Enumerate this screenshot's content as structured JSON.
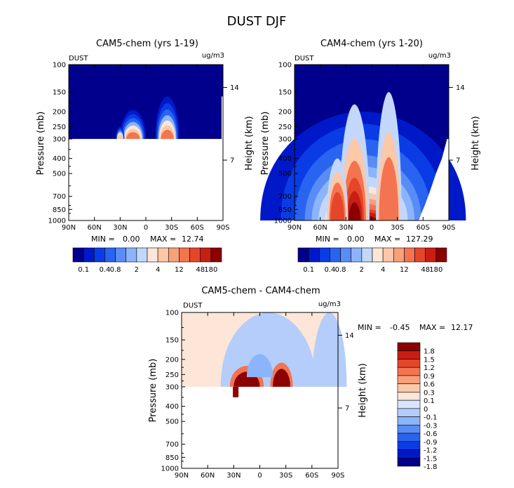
{
  "figure": {
    "title": "DUST DJF"
  },
  "chart_data": [
    {
      "type": "heatmap",
      "title": "CAM5-chem (yrs 1-19)",
      "left_label": "DUST",
      "units": "ug/m3",
      "ylabel": "Pressure (mb)",
      "right_label": "Height (km)",
      "x_ticks": [
        "90N",
        "60N",
        "30N",
        "0",
        "30S",
        "60S",
        "90S"
      ],
      "y_ticks": [
        "100",
        "150",
        "200",
        "250",
        "300",
        "400",
        "500",
        "700",
        "850",
        "1000"
      ],
      "right_ticks": [
        "14",
        "7"
      ],
      "stats": {
        "min_label": "MIN =",
        "min": "0.00",
        "max_label": "MAX =",
        "max": "12.74"
      },
      "levels": [
        "0.1",
        "0.4",
        "0.8",
        "2",
        "4",
        "12",
        "48",
        "180"
      ],
      "plumes": [
        {
          "lat": 15,
          "p_top": 195,
          "p_bottom": 300,
          "width": 30,
          "peak_level": 5
        },
        {
          "lat": -25,
          "p_top": 160,
          "p_bottom": 300,
          "width": 28,
          "peak_level": 5
        },
        {
          "lat": 30,
          "p_top": 250,
          "p_bottom": 300,
          "width": 10,
          "peak_level": 3
        }
      ]
    },
    {
      "type": "heatmap",
      "title": "CAM4-chem (yrs 1-20)",
      "left_label": "DUST",
      "units": "ug/m3",
      "ylabel": "Pressure (mb)",
      "right_label": "Height (km)",
      "x_ticks": [
        "90N",
        "60N",
        "30N",
        "0",
        "30S",
        "60S",
        "90S"
      ],
      "y_ticks": [
        "100",
        "150",
        "200",
        "250",
        "300",
        "400",
        "500",
        "700",
        "850",
        "1000"
      ],
      "right_ticks": [
        "14",
        "7"
      ],
      "stats": {
        "min_label": "MIN =",
        "min": "0.00",
        "max_label": "MAX =",
        "max": "127.29"
      },
      "levels": [
        "0.1",
        "0.4",
        "0.8",
        "2",
        "4",
        "12",
        "48",
        "180"
      ],
      "plumes": [
        {
          "lat": 20,
          "p_top": 180,
          "p_bottom": 1000,
          "width": 35,
          "peak_level": 14
        },
        {
          "lat": -20,
          "p_top": 150,
          "p_bottom": 1000,
          "width": 30,
          "peak_level": 10
        },
        {
          "lat": 40,
          "p_top": 400,
          "p_bottom": 1000,
          "width": 25,
          "peak_level": 11
        }
      ]
    },
    {
      "type": "heatmap",
      "title": "CAM5-chem - CAM4-chem",
      "left_label": "DUST",
      "units": "ug/m3",
      "ylabel": "Pressure (mb)",
      "right_label": "Height (km)",
      "x_ticks": [
        "90N",
        "60N",
        "30N",
        "0",
        "30S",
        "60S",
        "90S"
      ],
      "y_ticks": [
        "100",
        "150",
        "200",
        "250",
        "300",
        "400",
        "500",
        "700",
        "850",
        "1000"
      ],
      "right_ticks": [
        "14",
        "7"
      ],
      "stats": {
        "min_label": "MIN =",
        "min": "-0.45",
        "max_label": "MAX =",
        "max": "12.17"
      },
      "levels": [
        "1.8",
        "1.5",
        "1.2",
        "0.9",
        "0.6",
        "0.3",
        "0.1",
        "0",
        "-0.1",
        "-0.3",
        "-0.6",
        "-0.9",
        "-1.2",
        "-1.5",
        "-1.8"
      ],
      "plumes": [
        {
          "lat": 15,
          "p_top": 240,
          "p_bottom": 300,
          "width": 30,
          "value": 1.8
        },
        {
          "lat": -25,
          "p_top": 230,
          "p_bottom": 300,
          "width": 20,
          "value": 1.8
        },
        {
          "lat": 0,
          "p_top": 185,
          "p_bottom": 260,
          "width": 30,
          "value": -0.1
        }
      ]
    }
  ],
  "colors": {
    "upper_ramp": [
      "#00008c",
      "#0019c8",
      "#0a3ce6",
      "#2864f0",
      "#5a8cf5",
      "#8cb4fa",
      "#c3d7fc",
      "#fde6d7",
      "#fbc8a8",
      "#f8a07a",
      "#f47350",
      "#e64628",
      "#c81e14",
      "#8c0000"
    ],
    "diff_ramp": [
      "#8c0000",
      "#c81e14",
      "#e64628",
      "#f47350",
      "#f8a07a",
      "#fbc8a8",
      "#fde6d7",
      "#d7e6fc",
      "#b4cdfa",
      "#8cb4fa",
      "#5a8cf5",
      "#2864f0",
      "#0a3ce6",
      "#0019c8",
      "#00008c"
    ]
  }
}
